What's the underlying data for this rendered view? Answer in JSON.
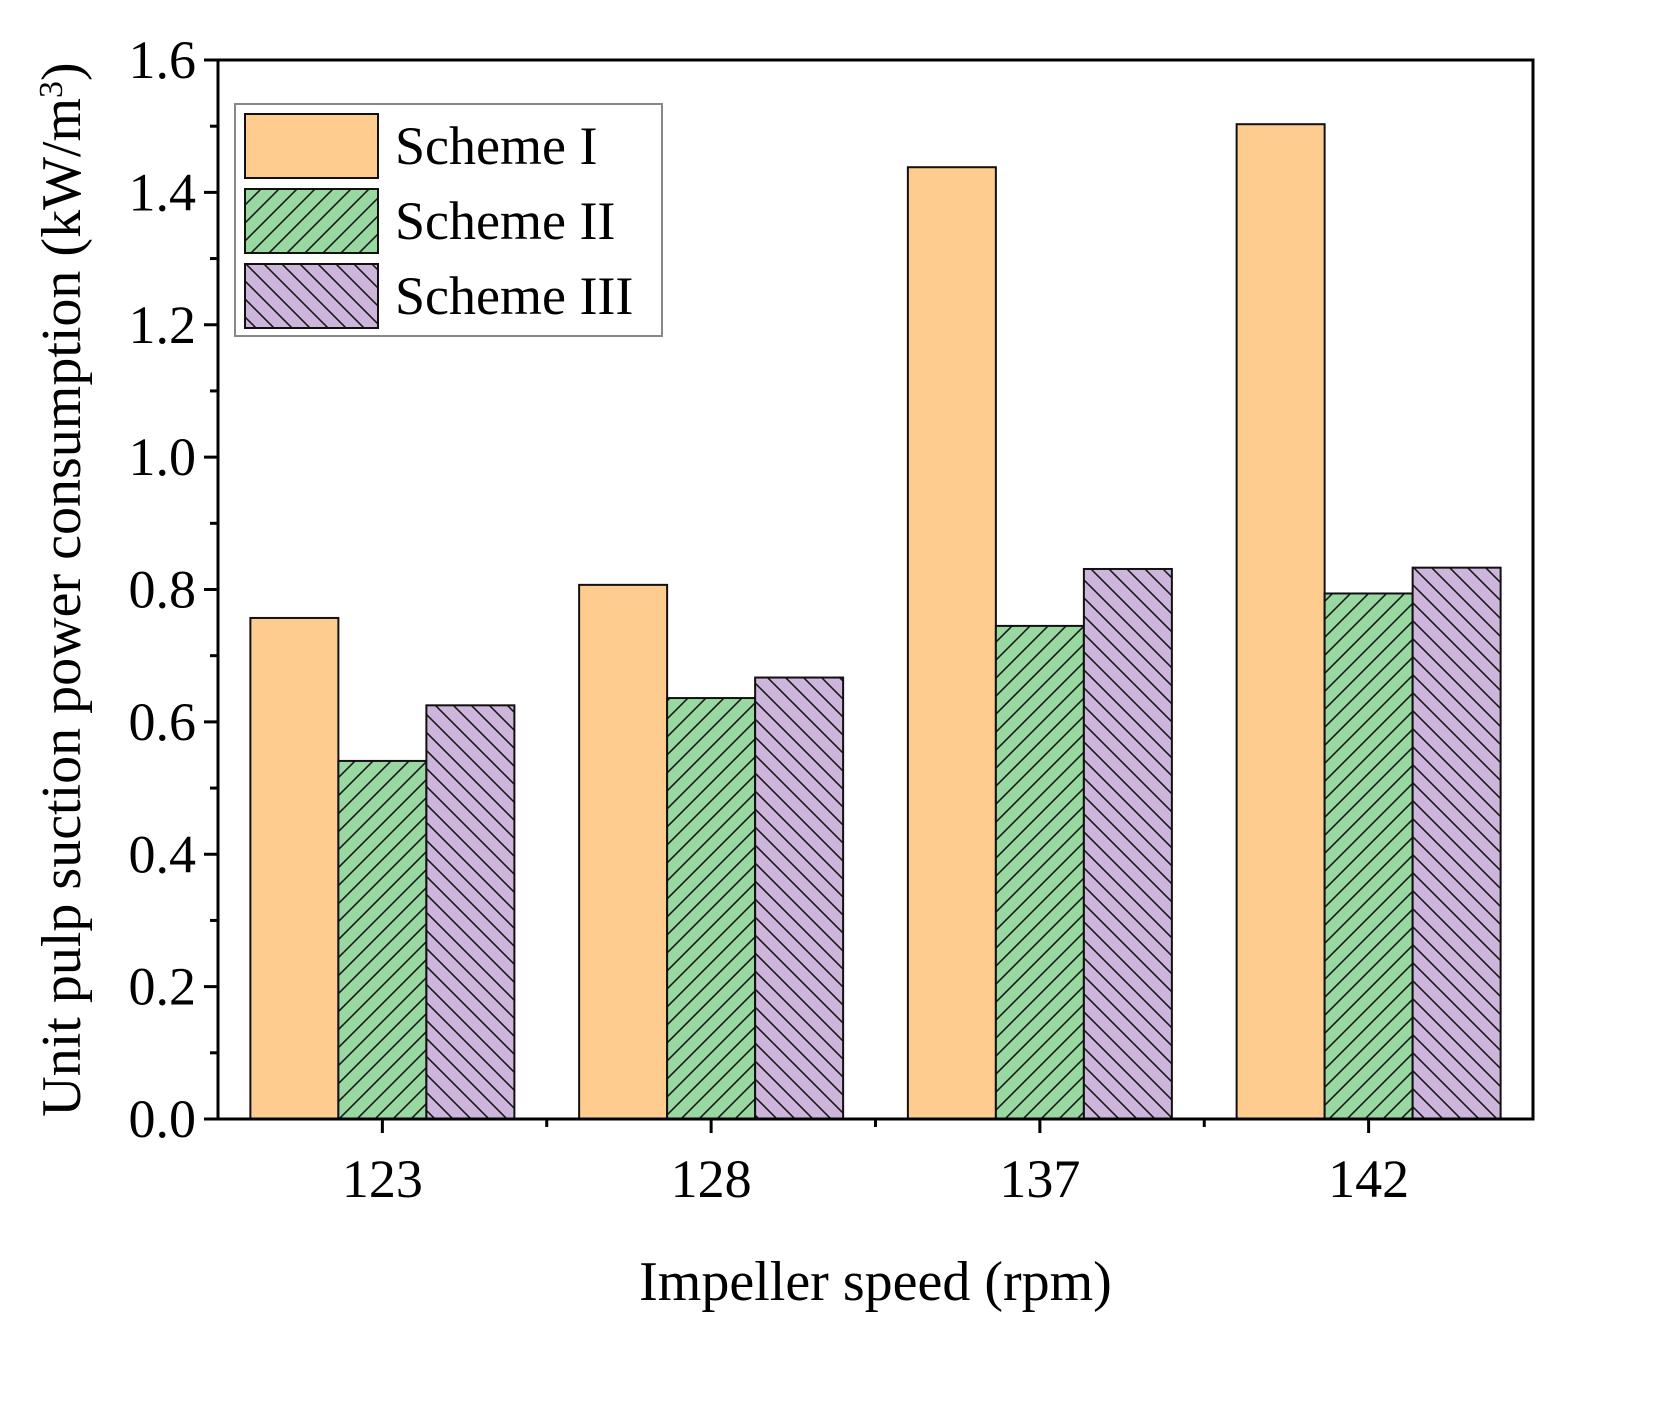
{
  "chart_data": {
    "type": "bar",
    "title": "",
    "xlabel": "Impeller speed (rpm)",
    "ylabel": {
      "main": "Unit pulp suction power consumption (kW/m",
      "superscript": "3",
      "close": ")"
    },
    "categories": [
      "123",
      "128",
      "137",
      "142"
    ],
    "series": [
      {
        "name": "Scheme I",
        "values": [
          0.757,
          0.807,
          1.438,
          1.503
        ],
        "color": "#ffcc8f",
        "pattern": "none"
      },
      {
        "name": "Scheme II",
        "values": [
          0.541,
          0.636,
          0.745,
          0.794
        ],
        "color": "#99d8a0",
        "pattern": "forward-hatch"
      },
      {
        "name": "Scheme III",
        "values": [
          0.625,
          0.667,
          0.831,
          0.833
        ],
        "color": "#cdb5dc",
        "pattern": "back-hatch"
      }
    ],
    "ylim": [
      0,
      1.6
    ],
    "yticks": [
      0.0,
      0.2,
      0.4,
      0.6,
      0.8,
      1.0,
      1.2,
      1.4,
      1.6
    ],
    "ytick_labels": [
      "0.0",
      "0.2",
      "0.4",
      "0.6",
      "0.8",
      "1.0",
      "1.2",
      "1.4",
      "1.6"
    ],
    "grid": false,
    "legend": {
      "position": "top-left"
    }
  }
}
